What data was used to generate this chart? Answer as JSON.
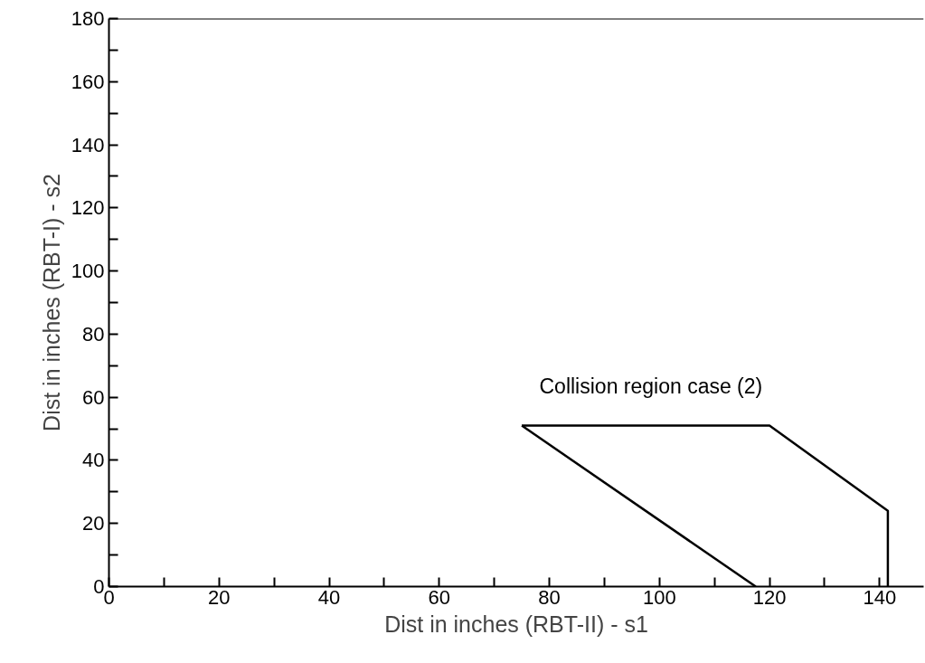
{
  "chart_data": {
    "type": "line",
    "xlabel": "Dist in inches (RBT-II) - s1",
    "ylabel": "Dist in inches (RBT-I) - s2",
    "series": [
      {
        "color": "#000000",
        "x": [
          75,
          117.5
        ],
        "values": [
          51,
          0
        ]
      },
      {
        "color": "#000000",
        "x": [
          75,
          120,
          141.5,
          141.5
        ],
        "values": [
          51,
          51,
          24,
          0
        ]
      }
    ],
    "xlim": [
      0,
      148
    ],
    "ylim": [
      0,
      180
    ],
    "xticks": [
      0,
      {
        "value": 10,
        "label": null
      },
      20,
      {
        "value": 30,
        "label": null
      },
      40,
      {
        "value": 50,
        "label": null
      },
      60,
      {
        "value": 70,
        "label": null
      },
      80,
      {
        "value": 90,
        "label": null
      },
      100,
      {
        "value": 110,
        "label": null
      },
      120,
      {
        "value": 130,
        "label": null
      },
      140
    ],
    "yticks": [
      0,
      {
        "value": 10,
        "label": null
      },
      20,
      {
        "value": 30,
        "label": null
      },
      40,
      {
        "value": 50,
        "label": null
      },
      60,
      {
        "value": 70,
        "label": null
      },
      80,
      {
        "value": 90,
        "label": null
      },
      100,
      {
        "value": 110,
        "label": null
      },
      120,
      {
        "value": 130,
        "label": null
      },
      140,
      {
        "value": 150,
        "label": null
      },
      160,
      {
        "value": 170,
        "label": null
      },
      180
    ],
    "annotations": [
      "Collision region case (2)"
    ],
    "grid": false,
    "marker": "none",
    "line_style": "solid"
  }
}
